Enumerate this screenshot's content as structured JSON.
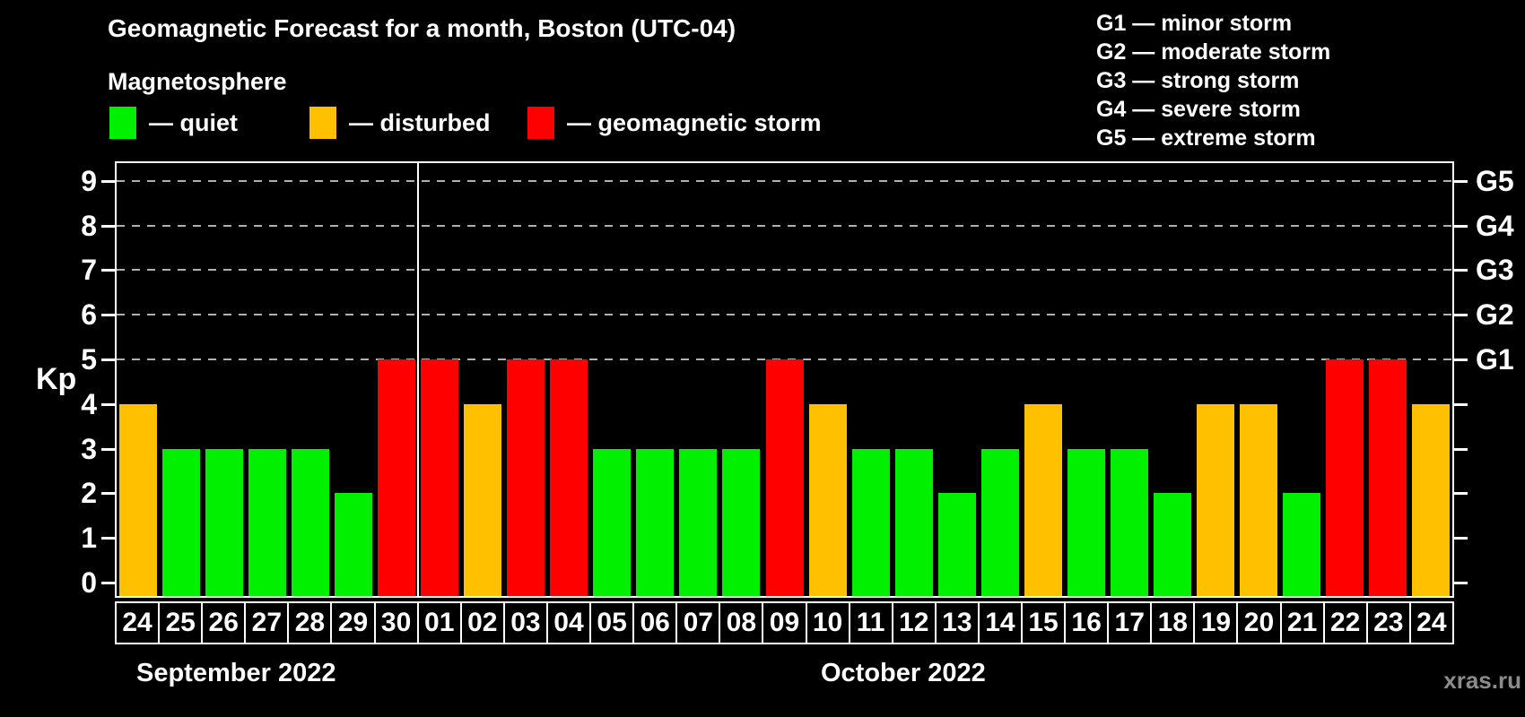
{
  "title": "Geomagnetic Forecast for a month, Boston (UTC-04)",
  "subtitle": "Magnetosphere",
  "legend": {
    "items": [
      {
        "key": "quiet",
        "label": "— quiet",
        "color": "#00f000"
      },
      {
        "key": "disturbed",
        "label": "— disturbed",
        "color": "#ffc000"
      },
      {
        "key": "storm",
        "label": "— geomagnetic storm",
        "color": "#ff0000"
      }
    ]
  },
  "g_scale_legend": [
    "G1 — minor storm",
    "G2 — moderate storm",
    "G3 — strong storm",
    "G4 — severe storm",
    "G5 — extreme storm"
  ],
  "watermark": "xras.ru",
  "chart_data": {
    "type": "bar",
    "title": "Geomagnetic Forecast for a month, Boston (UTC-04)",
    "ylabel": "Kp",
    "ylim": [
      0,
      9
    ],
    "y_ticks": [
      0,
      1,
      2,
      3,
      4,
      5,
      6,
      7,
      8,
      9
    ],
    "gridlines_at": [
      5,
      6,
      7,
      8,
      9
    ],
    "grid_style": "dashed gray horizontal lines at storm levels only",
    "right_axis_labels": [
      {
        "kp": 5,
        "label": "G1"
      },
      {
        "kp": 6,
        "label": "G2"
      },
      {
        "kp": 7,
        "label": "G3"
      },
      {
        "kp": 8,
        "label": "G4"
      },
      {
        "kp": 9,
        "label": "G5"
      }
    ],
    "month_sections": [
      {
        "label": "September 2022",
        "days": 7
      },
      {
        "label": "October 2022",
        "days": 24
      }
    ],
    "categories": [
      "24",
      "25",
      "26",
      "27",
      "28",
      "29",
      "30",
      "01",
      "02",
      "03",
      "04",
      "05",
      "06",
      "07",
      "08",
      "09",
      "10",
      "11",
      "12",
      "13",
      "14",
      "15",
      "16",
      "17",
      "18",
      "19",
      "20",
      "21",
      "22",
      "23",
      "24"
    ],
    "values": [
      4,
      3,
      3,
      3,
      3,
      2,
      5,
      5,
      4,
      5,
      5,
      3,
      3,
      3,
      3,
      5,
      4,
      3,
      3,
      2,
      3,
      4,
      3,
      3,
      2,
      4,
      4,
      2,
      5,
      5,
      4
    ],
    "statuses": [
      "disturbed",
      "quiet",
      "quiet",
      "quiet",
      "quiet",
      "quiet",
      "storm",
      "storm",
      "disturbed",
      "storm",
      "storm",
      "quiet",
      "quiet",
      "quiet",
      "quiet",
      "storm",
      "disturbed",
      "quiet",
      "quiet",
      "quiet",
      "quiet",
      "disturbed",
      "quiet",
      "quiet",
      "quiet",
      "disturbed",
      "disturbed",
      "quiet",
      "storm",
      "storm",
      "disturbed"
    ],
    "colors": {
      "quiet": "#00f000",
      "disturbed": "#ffc000",
      "storm": "#ff0000"
    }
  }
}
